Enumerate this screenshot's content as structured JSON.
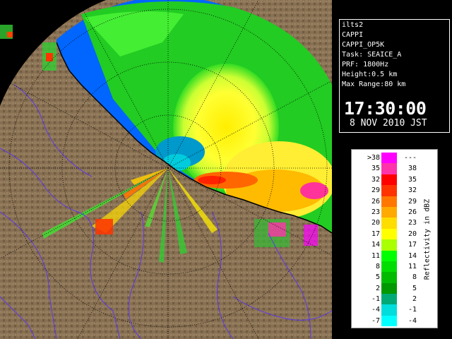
{
  "radar": {
    "station": "ilts2",
    "product": "CAPPI",
    "product_code": "CAPPI_OP5K",
    "task": "Task: SEAICE_A",
    "prf": "PRF: 1800Hz",
    "height": "Height:0.5 km",
    "max_range": "Max Range:80 km",
    "time": "17:30:00",
    "date": "8 NOV 2010 JST"
  },
  "legend": {
    "title": "Reflectivity in dBZ",
    "rows": [
      {
        "low": ">38",
        "high": "---",
        "color": "#ff00ff"
      },
      {
        "low": "35",
        "high": "38",
        "color": "#ff33aa"
      },
      {
        "low": "32",
        "high": "35",
        "color": "#ff0000"
      },
      {
        "low": "29",
        "high": "32",
        "color": "#ff3300"
      },
      {
        "low": "26",
        "high": "29",
        "color": "#ff7700"
      },
      {
        "low": "23",
        "high": "26",
        "color": "#ffaa00"
      },
      {
        "low": "20",
        "high": "23",
        "color": "#ffdd00"
      },
      {
        "low": "17",
        "high": "20",
        "color": "#ffff00"
      },
      {
        "low": "14",
        "high": "17",
        "color": "#aaff00"
      },
      {
        "low": "11",
        "high": "14",
        "color": "#00ff00"
      },
      {
        "low": "8",
        "high": "11",
        "color": "#00dd00"
      },
      {
        "low": "5",
        "high": "8",
        "color": "#00bb00"
      },
      {
        "low": "2",
        "high": "5",
        "color": "#009900"
      },
      {
        "low": "-1",
        "high": "2",
        "color": "#00aa77"
      },
      {
        "low": "-4",
        "high": "-1",
        "color": "#00dddd"
      },
      {
        "low": "-7",
        "high": "-4",
        "color": "#00ffff"
      }
    ]
  },
  "colors": {
    "no_echo": "#0066ff",
    "terrain": "#8b7355",
    "rivers": "#5533ff",
    "range_rings": "#000000"
  }
}
